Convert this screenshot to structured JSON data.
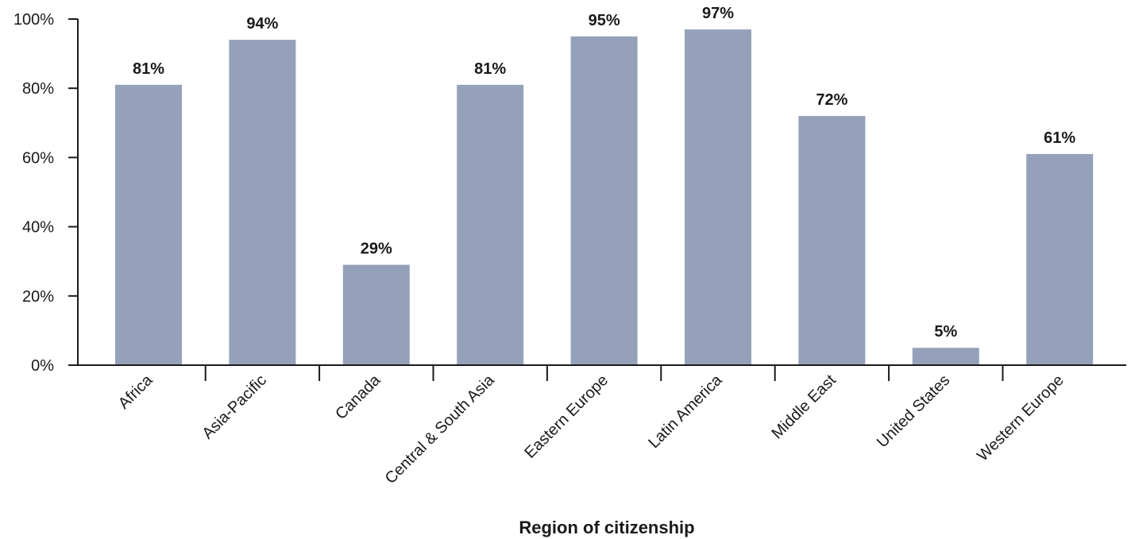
{
  "chart_data": {
    "type": "bar",
    "title": "",
    "xlabel": "Region of citizenship",
    "ylabel": "",
    "categories": [
      "Africa",
      "Asia-Pacific",
      "Canada",
      "Central & South Asia",
      "Eastern Europe",
      "Latin America",
      "Middle East",
      "United States",
      "Western Europe"
    ],
    "values": [
      81,
      94,
      29,
      81,
      95,
      97,
      72,
      5,
      61
    ],
    "data_labels": [
      "81%",
      "94%",
      "29%",
      "81%",
      "95%",
      "97%",
      "72%",
      "5%",
      "61%"
    ],
    "y_ticks": [
      0,
      20,
      40,
      60,
      80,
      100
    ],
    "y_tick_labels": [
      "0%",
      "20%",
      "40%",
      "60%",
      "80%",
      "100%"
    ],
    "ylim": [
      0,
      100
    ],
    "grid": false,
    "legend": "none",
    "colors": {
      "bar": "#95a1ba",
      "axis": "#1a1a1a"
    }
  }
}
